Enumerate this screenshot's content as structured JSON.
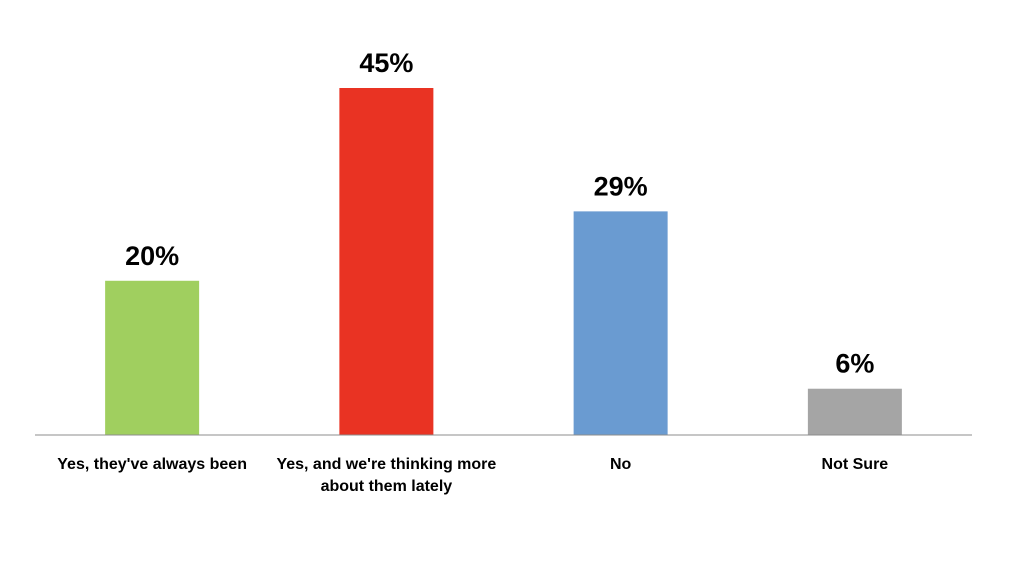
{
  "chart_data": {
    "type": "bar",
    "categories": [
      "Yes, they've always been",
      "Yes, and we're thinking more about them lately",
      "No",
      "Not Sure"
    ],
    "values": [
      20,
      45,
      29,
      6
    ],
    "value_labels": [
      "20%",
      "45%",
      "29%",
      "6%"
    ],
    "colors": [
      "#a0cf5f",
      "#e93323",
      "#6a9bd1",
      "#a5a5a5"
    ]
  }
}
